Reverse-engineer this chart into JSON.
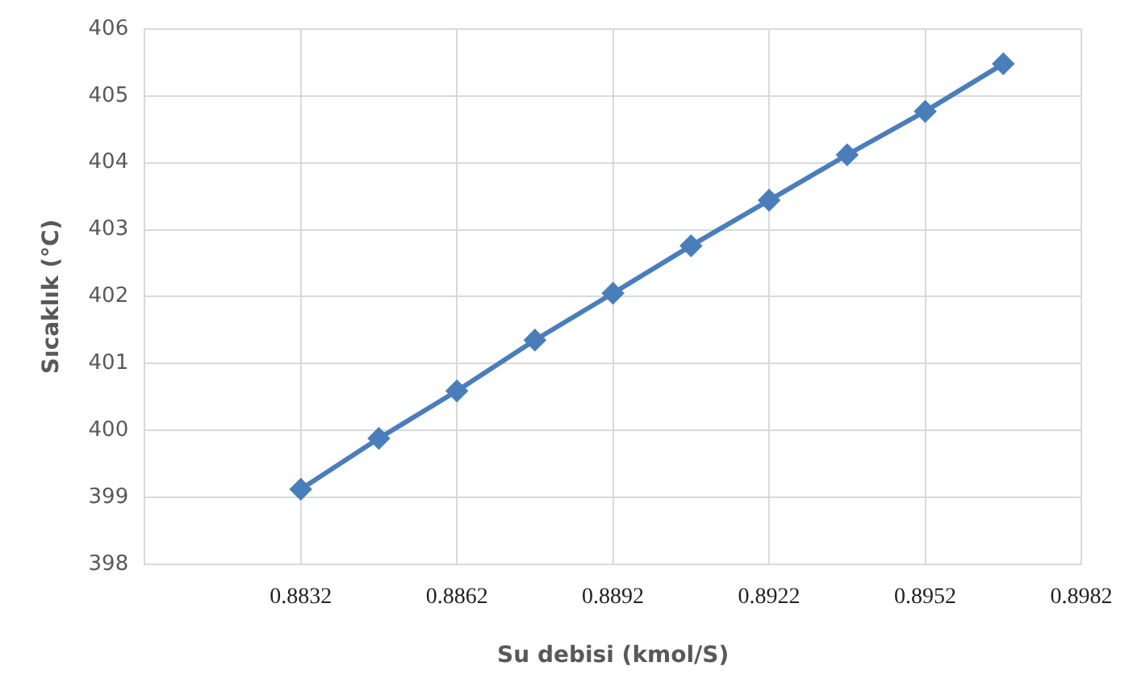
{
  "chart_data": {
    "type": "line",
    "xlabel": "Su debisi (kmol/S)",
    "ylabel": "Sıcaklık (°C)",
    "x": [
      0.8832,
      0.8847,
      0.8862,
      0.8877,
      0.8892,
      0.8907,
      0.8922,
      0.8937,
      0.8952,
      0.8967
    ],
    "series": [
      {
        "color": "#4a7ebb",
        "values": [
          399.12,
          399.88,
          400.59,
          401.35,
          402.05,
          402.76,
          403.44,
          404.12,
          404.77,
          405.48
        ]
      }
    ],
    "xlim": [
      0.8802,
      0.8982
    ],
    "xticks": [
      {
        "value": 0.8802,
        "label": null
      },
      0.8832,
      0.8862,
      0.8892,
      0.8922,
      0.8952,
      0.8982
    ],
    "ylim": [
      398,
      406
    ],
    "yticks": [
      398,
      399,
      400,
      401,
      402,
      403,
      404,
      405,
      406
    ],
    "grid": true,
    "legend": false,
    "marker": "diamond",
    "line_style": "solid"
  }
}
